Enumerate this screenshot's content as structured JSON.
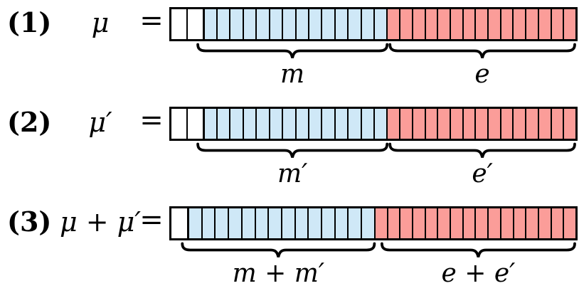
{
  "figure": {
    "colors": {
      "lead_fill": "#ffffff",
      "mantissa_fill": "#cfe8f7",
      "exponent_fill": "#fb9d99",
      "stroke": "#000000"
    },
    "rows": [
      {
        "eq_number": "(1)",
        "lhs": "μ",
        "equals": "=",
        "segments": [
          {
            "name": "lead",
            "cells": 2
          },
          {
            "name": "mantissa",
            "cells": 14,
            "label": "m"
          },
          {
            "name": "exponent",
            "cells": 15,
            "label": "e"
          }
        ]
      },
      {
        "eq_number": "(2)",
        "lhs": "μ′",
        "equals": "=",
        "segments": [
          {
            "name": "lead",
            "cells": 2
          },
          {
            "name": "mantissa",
            "cells": 14,
            "label": "m′"
          },
          {
            "name": "exponent",
            "cells": 15,
            "label": "e′"
          }
        ]
      },
      {
        "eq_number": "(3)",
        "lhs": "μ + μ′",
        "equals": "=",
        "segments": [
          {
            "name": "lead",
            "cells": 1
          },
          {
            "name": "mantissa",
            "cells": 14,
            "label": "m + m′"
          },
          {
            "name": "exponent",
            "cells": 16,
            "label": "e + e′"
          }
        ]
      }
    ]
  }
}
